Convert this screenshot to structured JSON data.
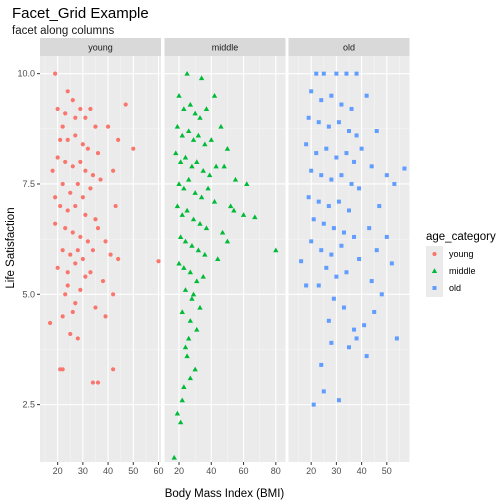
{
  "chart_data": {
    "type": "scatter",
    "title": "Facet_Grid Example",
    "subtitle": "facet along columns",
    "xlabel": "Body Mass Index (BMI)",
    "ylabel": "Life Satisfaction",
    "facet_by": "age_category",
    "facets": [
      {
        "label": "young",
        "xlim": [
          13,
          61
        ],
        "x_ticks": [
          20,
          30,
          40,
          50,
          60
        ],
        "x_tick_labels": [
          "20",
          "30",
          "40",
          "50",
          "60"
        ]
      },
      {
        "label": "middle",
        "xlim": [
          11,
          86
        ],
        "x_ticks": [
          20,
          40,
          60,
          80
        ],
        "x_tick_labels": [
          "20",
          "40",
          "60",
          "80"
        ]
      },
      {
        "label": "old",
        "xlim": [
          11,
          59
        ],
        "x_ticks": [
          20,
          30,
          40,
          50
        ],
        "x_tick_labels": [
          "20",
          "30",
          "40",
          "50"
        ]
      }
    ],
    "ylim": [
      1.2,
      10.4
    ],
    "y_ticks": [
      2.5,
      5.0,
      7.5,
      10.0
    ],
    "y_tick_labels": [
      "2.5",
      "5.0",
      "7.5",
      "10.0"
    ],
    "grid": true,
    "legend": {
      "title": "age_category",
      "position": "right",
      "entries": [
        {
          "label": "young",
          "color": "#F8766D",
          "shape": "circle"
        },
        {
          "label": "middle",
          "color": "#00BA38",
          "shape": "triangle"
        },
        {
          "label": "old",
          "color": "#619CFF",
          "shape": "square"
        }
      ]
    },
    "series": [
      {
        "name": "young",
        "color": "#F8766D",
        "shape": "circle",
        "points": [
          [
            19,
            10.0
          ],
          [
            24,
            9.6
          ],
          [
            47,
            9.3
          ],
          [
            27,
            9.0
          ],
          [
            22,
            8.8
          ],
          [
            35,
            8.8
          ],
          [
            40,
            8.8
          ],
          [
            44,
            8.5
          ],
          [
            50,
            8.3
          ],
          [
            42,
            7.8
          ],
          [
            43,
            7.0
          ],
          [
            39,
            6.2
          ],
          [
            41,
            5.9
          ],
          [
            44,
            5.8
          ],
          [
            60,
            5.75
          ],
          [
            33,
            5.5
          ],
          [
            38,
            5.3
          ],
          [
            42,
            5.0
          ],
          [
            24,
            5.2
          ],
          [
            27,
            4.8
          ],
          [
            35,
            4.7
          ],
          [
            39,
            4.5
          ],
          [
            22,
            4.5
          ],
          [
            26,
            4.6
          ],
          [
            17,
            4.35
          ],
          [
            25,
            4.1
          ],
          [
            28,
            4.0
          ],
          [
            21,
            3.3
          ],
          [
            22,
            3.3
          ],
          [
            42,
            3.3
          ],
          [
            34,
            3.0
          ],
          [
            36,
            3.0
          ],
          [
            20,
            9.2
          ],
          [
            23,
            9.1
          ],
          [
            26,
            9.4
          ],
          [
            29,
            9.2
          ],
          [
            31,
            9.0
          ],
          [
            33,
            9.2
          ],
          [
            21,
            8.5
          ],
          [
            24,
            8.5
          ],
          [
            27,
            8.6
          ],
          [
            30,
            8.4
          ],
          [
            32,
            8.3
          ],
          [
            36,
            8.2
          ],
          [
            20,
            8.1
          ],
          [
            23,
            8.0
          ],
          [
            26,
            7.9
          ],
          [
            29,
            8.0
          ],
          [
            31,
            7.8
          ],
          [
            34,
            7.7
          ],
          [
            37,
            7.6
          ],
          [
            22,
            7.5
          ],
          [
            25,
            7.3
          ],
          [
            28,
            7.5
          ],
          [
            30,
            7.2
          ],
          [
            33,
            7.4
          ],
          [
            21,
            7.0
          ],
          [
            24,
            6.9
          ],
          [
            27,
            7.0
          ],
          [
            31,
            6.8
          ],
          [
            35,
            6.7
          ],
          [
            19,
            6.6
          ],
          [
            23,
            6.5
          ],
          [
            26,
            6.4
          ],
          [
            29,
            6.3
          ],
          [
            32,
            6.2
          ],
          [
            22,
            6.0
          ],
          [
            25,
            5.9
          ],
          [
            28,
            6.0
          ],
          [
            30,
            5.8
          ],
          [
            20,
            5.6
          ],
          [
            24,
            5.5
          ],
          [
            27,
            5.7
          ],
          [
            31,
            5.4
          ],
          [
            23,
            5.0
          ],
          [
            29,
            5.1
          ],
          [
            18,
            7.8
          ],
          [
            19,
            7.2
          ],
          [
            36,
            6.5
          ],
          [
            34,
            6.0
          ]
        ]
      },
      {
        "name": "middle",
        "color": "#00BA38",
        "shape": "triangle",
        "points": [
          [
            25,
            10.0
          ],
          [
            34,
            9.9
          ],
          [
            42,
            9.5
          ],
          [
            46,
            8.8
          ],
          [
            50,
            8.3
          ],
          [
            48,
            7.9
          ],
          [
            55,
            7.6
          ],
          [
            62,
            7.5
          ],
          [
            52,
            7.0
          ],
          [
            54,
            6.9
          ],
          [
            60,
            6.8
          ],
          [
            67,
            6.75
          ],
          [
            47,
            6.4
          ],
          [
            50,
            6.2
          ],
          [
            44,
            5.8
          ],
          [
            80,
            6.0
          ],
          [
            35,
            5.4
          ],
          [
            28,
            4.9
          ],
          [
            33,
            4.7
          ],
          [
            27,
            4.4
          ],
          [
            26,
            4.0
          ],
          [
            25,
            3.6
          ],
          [
            30,
            3.3
          ],
          [
            23,
            2.9
          ],
          [
            19,
            2.3
          ],
          [
            21,
            2.1
          ],
          [
            17,
            1.3
          ],
          [
            20,
            9.5
          ],
          [
            23,
            9.2
          ],
          [
            27,
            9.3
          ],
          [
            30,
            9.1
          ],
          [
            33,
            9.0
          ],
          [
            37,
            9.2
          ],
          [
            19,
            8.8
          ],
          [
            22,
            8.6
          ],
          [
            26,
            8.7
          ],
          [
            29,
            8.5
          ],
          [
            32,
            8.6
          ],
          [
            36,
            8.4
          ],
          [
            40,
            8.5
          ],
          [
            18,
            8.2
          ],
          [
            21,
            8.0
          ],
          [
            24,
            8.1
          ],
          [
            28,
            7.9
          ],
          [
            31,
            8.0
          ],
          [
            35,
            7.8
          ],
          [
            39,
            7.7
          ],
          [
            43,
            7.9
          ],
          [
            20,
            7.5
          ],
          [
            23,
            7.4
          ],
          [
            26,
            7.6
          ],
          [
            30,
            7.3
          ],
          [
            34,
            7.2
          ],
          [
            38,
            7.4
          ],
          [
            42,
            7.1
          ],
          [
            19,
            7.0
          ],
          [
            22,
            6.8
          ],
          [
            25,
            6.9
          ],
          [
            29,
            6.7
          ],
          [
            33,
            6.6
          ],
          [
            37,
            6.5
          ],
          [
            21,
            6.3
          ],
          [
            24,
            6.2
          ],
          [
            28,
            6.1
          ],
          [
            32,
            6.0
          ],
          [
            36,
            5.9
          ],
          [
            20,
            5.7
          ],
          [
            23,
            5.6
          ],
          [
            27,
            5.5
          ],
          [
            31,
            5.3
          ],
          [
            24,
            5.1
          ],
          [
            29,
            5.0
          ],
          [
            22,
            4.6
          ],
          [
            31,
            4.2
          ],
          [
            24,
            3.8
          ],
          [
            27,
            3.1
          ],
          [
            22,
            2.6
          ]
        ]
      },
      {
        "name": "old",
        "color": "#619CFF",
        "shape": "square",
        "points": [
          [
            22,
            10.0
          ],
          [
            30,
            10.0
          ],
          [
            34,
            10.0
          ],
          [
            42,
            9.5
          ],
          [
            46,
            8.7
          ],
          [
            40,
            8.3
          ],
          [
            44,
            7.9
          ],
          [
            50,
            7.7
          ],
          [
            57,
            7.85
          ],
          [
            53,
            7.5
          ],
          [
            47,
            7.0
          ],
          [
            43,
            6.5
          ],
          [
            50,
            6.3
          ],
          [
            46,
            6.0
          ],
          [
            39,
            5.8
          ],
          [
            52,
            5.7
          ],
          [
            44,
            5.3
          ],
          [
            48,
            5.0
          ],
          [
            45,
            4.6
          ],
          [
            54,
            4.0
          ],
          [
            41,
            4.3
          ],
          [
            37,
            4.2
          ],
          [
            35,
            3.8
          ],
          [
            42,
            3.6
          ],
          [
            28,
            3.9
          ],
          [
            24,
            3.4
          ],
          [
            25,
            2.8
          ],
          [
            21,
            2.5
          ],
          [
            16,
            5.75
          ],
          [
            18,
            5.2
          ],
          [
            31,
            2.6
          ],
          [
            38,
            4.0
          ],
          [
            20,
            9.6
          ],
          [
            24,
            9.4
          ],
          [
            28,
            9.5
          ],
          [
            32,
            9.3
          ],
          [
            36,
            9.2
          ],
          [
            19,
            9.0
          ],
          [
            23,
            8.9
          ],
          [
            27,
            8.8
          ],
          [
            31,
            8.9
          ],
          [
            35,
            8.7
          ],
          [
            38,
            8.6
          ],
          [
            18,
            8.4
          ],
          [
            22,
            8.2
          ],
          [
            26,
            8.3
          ],
          [
            30,
            8.1
          ],
          [
            34,
            8.2
          ],
          [
            37,
            8.0
          ],
          [
            20,
            7.8
          ],
          [
            24,
            7.7
          ],
          [
            28,
            7.6
          ],
          [
            32,
            7.7
          ],
          [
            36,
            7.5
          ],
          [
            39,
            7.4
          ],
          [
            19,
            7.2
          ],
          [
            23,
            7.1
          ],
          [
            27,
            7.0
          ],
          [
            31,
            7.1
          ],
          [
            35,
            6.9
          ],
          [
            21,
            6.7
          ],
          [
            25,
            6.6
          ],
          [
            29,
            6.5
          ],
          [
            33,
            6.4
          ],
          [
            37,
            6.3
          ],
          [
            20,
            6.2
          ],
          [
            24,
            6.0
          ],
          [
            28,
            5.9
          ],
          [
            32,
            6.1
          ],
          [
            26,
            5.6
          ],
          [
            30,
            5.4
          ],
          [
            34,
            5.5
          ],
          [
            23,
            5.2
          ],
          [
            29,
            4.9
          ],
          [
            33,
            4.7
          ],
          [
            27,
            4.4
          ],
          [
            25,
            10.0
          ],
          [
            38,
            10.0
          ]
        ]
      }
    ]
  }
}
